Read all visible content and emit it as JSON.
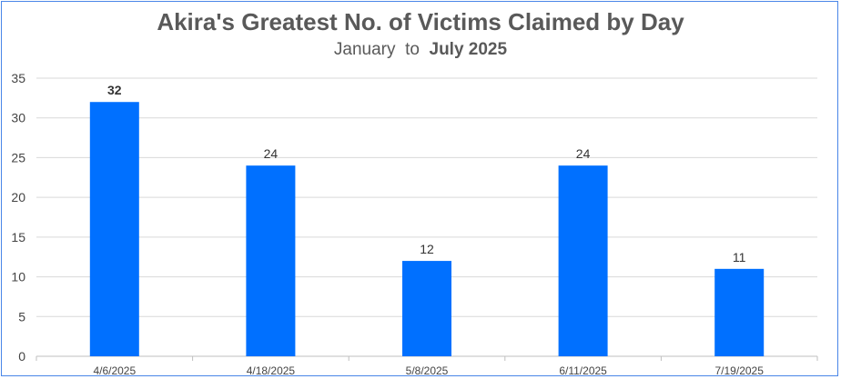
{
  "colors": {
    "bar": "#0070ff",
    "grid": "#d9d9d9",
    "border": "#4a86e8"
  },
  "chart_data": {
    "type": "bar",
    "title": "Akira's Greatest No. of Victims Claimed by Day",
    "subtitle_prefix": "January",
    "subtitle_mid": "to",
    "subtitle_emph": "July 2025",
    "categories": [
      "4/6/2025",
      "4/18/2025",
      "5/8/2025",
      "6/11/2025",
      "7/19/2025"
    ],
    "values": [
      32,
      24,
      12,
      24,
      11
    ],
    "data_labels": [
      "32",
      "24",
      "12",
      "24",
      "11"
    ],
    "highlighted_label_index": 0,
    "ylim": [
      0,
      35
    ],
    "yticks": [
      0,
      5,
      10,
      15,
      20,
      25,
      30,
      35
    ],
    "xlabel": "",
    "ylabel": "",
    "grid": true,
    "legend": "none"
  }
}
